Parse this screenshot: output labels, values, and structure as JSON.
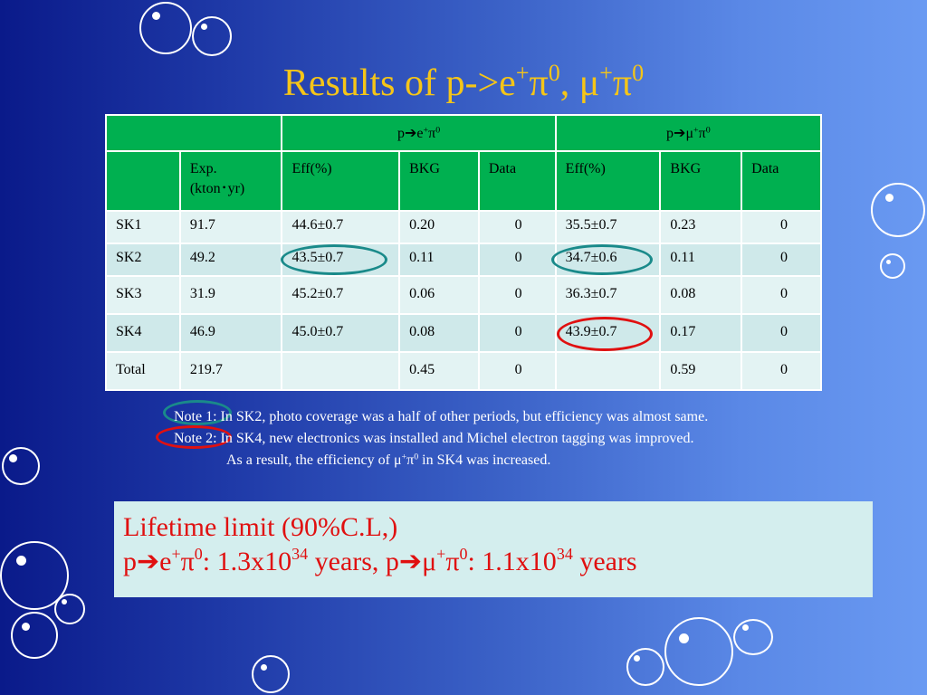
{
  "title": {
    "prefix": "Results of p->e",
    "sup1": "+",
    "pi1": "π",
    "sup2": "0",
    "sep": ", μ",
    "sup3": "+",
    "pi2": "π",
    "sup4": "0"
  },
  "table": {
    "mode1": {
      "p": "p",
      "arrow": "➔",
      "e": "e",
      "plus": "+",
      "pi": "π",
      "zero": "0"
    },
    "mode2": {
      "p": "p",
      "arrow": "➔",
      "mu": "μ",
      "plus": "+",
      "pi": "π",
      "zero": "0"
    },
    "headers": {
      "exp_line1": "Exp.",
      "exp_line2": "(kton･yr)",
      "eff1": "Eff(%)",
      "bkg1": "BKG",
      "data1": "Data",
      "eff2": "Eff(%)",
      "bkg2": "BKG",
      "data2": "Data"
    },
    "rows": [
      {
        "period": "SK1",
        "exp": "91.7",
        "eff1": "44.6±0.7",
        "bkg1": "0.20",
        "data1": "0",
        "eff2": "35.5±0.7",
        "bkg2": "0.23",
        "data2": "0"
      },
      {
        "period": "SK2",
        "exp": "49.2",
        "eff1": "43.5±0.7",
        "bkg1": "0.11",
        "data1": "0",
        "eff2": "34.7±0.6",
        "bkg2": "0.11",
        "data2": "0"
      },
      {
        "period": "SK3",
        "exp": "31.9",
        "eff1": "45.2±0.7",
        "bkg1": "0.06",
        "data1": "0",
        "eff2": "36.3±0.7",
        "bkg2": "0.08",
        "data2": "0"
      },
      {
        "period": "SK4",
        "exp": "46.9",
        "eff1": "45.0±0.7",
        "bkg1": "0.08",
        "data1": "0",
        "eff2": "43.9±0.7",
        "bkg2": "0.17",
        "data2": "0"
      },
      {
        "period": "Total",
        "exp": "219.7",
        "eff1": "",
        "bkg1": "0.45",
        "data1": "0",
        "eff2": "",
        "bkg2": "0.59",
        "data2": "0"
      }
    ]
  },
  "notes": {
    "note1": "Note 1: In SK2, photo coverage was a half of other periods, but efficiency was almost same.",
    "note2": "Note 2: In SK4, new electronics was installed and Michel electron tagging was improved.",
    "note3_a": "As a result, the efficiency of μ",
    "note3_plus": "+",
    "note3_pi": "π",
    "note3_zero": "0",
    "note3_b": " in SK4 was increased."
  },
  "lifetime": {
    "heading": "Lifetime limit (90%C.L,)",
    "p1": "p",
    "arrow1": "➔",
    "e": "e",
    "plus1": "+",
    "pi1": "π",
    "zero1": "0",
    "value1": ": 1.3x10",
    "exp1": "34",
    "mid": " years, p",
    "arrow2": "➔",
    "mu": "μ",
    "plus2": "+",
    "pi2": "π",
    "zero2": "0",
    "value2": ": 1.1x10",
    "exp2": "34",
    "tail": " years"
  },
  "colors": {
    "title": "#f5c518",
    "table_header": "#00b050",
    "table_cell": "#e3f3f3",
    "lifetime_text": "#e01010",
    "highlight_teal": "#1a8a8a",
    "highlight_red": "#e01010"
  }
}
